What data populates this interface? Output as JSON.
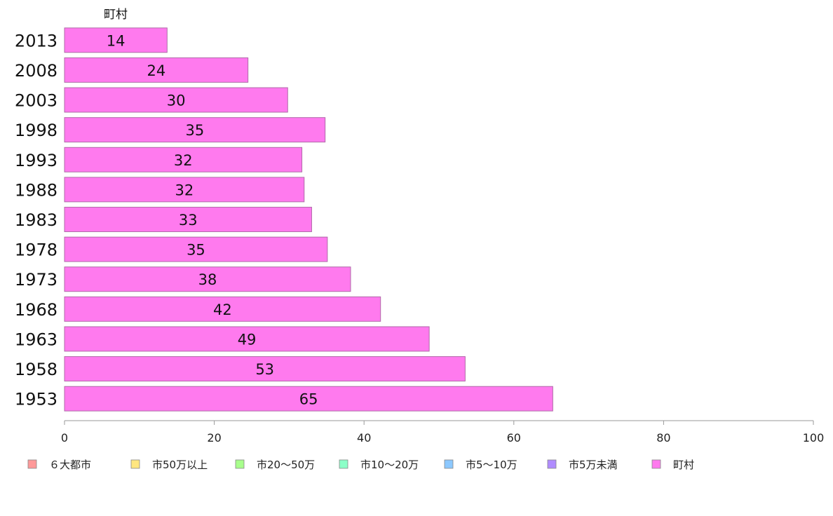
{
  "chart_data": {
    "type": "bar",
    "orientation": "horizontal",
    "series_title": "町村",
    "categories": [
      "2013",
      "2008",
      "2003",
      "1998",
      "1993",
      "1988",
      "1983",
      "1978",
      "1973",
      "1968",
      "1963",
      "1958",
      "1953"
    ],
    "series": [
      {
        "name": "町村",
        "values": [
          13.7,
          24.5,
          29.8,
          34.8,
          31.7,
          32.0,
          33.0,
          35.1,
          38.2,
          42.2,
          48.7,
          53.5,
          65.2
        ],
        "labels": [
          "14",
          "24",
          "30",
          "35",
          "32",
          "32",
          "33",
          "35",
          "38",
          "42",
          "49",
          "53",
          "65"
        ]
      }
    ],
    "xlim": [
      0,
      100
    ],
    "xticks": [
      "0",
      "20",
      "40",
      "60",
      "80",
      "100"
    ],
    "grid": false,
    "legend_position": "bottom",
    "legend": [
      {
        "label": "６大都市",
        "color": "#ff9999"
      },
      {
        "label": "市50万以上",
        "color": "#ffe680"
      },
      {
        "label": "市20〜50万",
        "color": "#a8ff8c"
      },
      {
        "label": "市10〜20万",
        "color": "#8cffc8"
      },
      {
        "label": "市5〜10万",
        "color": "#8cc8ff"
      },
      {
        "label": "市5万未満",
        "color": "#b08cff"
      },
      {
        "label": "町村",
        "color": "#ff7aee"
      }
    ],
    "bar_color": "#ff7aee",
    "bar_stroke": "#b06aa8"
  }
}
